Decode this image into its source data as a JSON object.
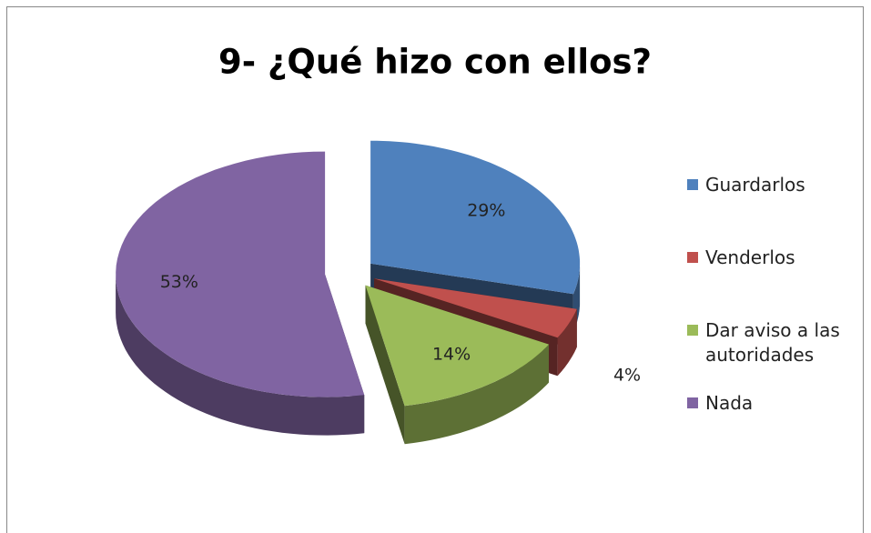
{
  "chart_data": {
    "type": "pie",
    "title": "9- ¿Qué hizo con ellos?",
    "categories": [
      "Guardarlos",
      "Venderlos",
      "Dar aviso a las autoridades",
      "Nada"
    ],
    "values": [
      29,
      4,
      14,
      53
    ],
    "value_labels": [
      "29%",
      "4%",
      "14%",
      "53%"
    ],
    "colors": [
      "#4f81bd",
      "#c0504d",
      "#9bbb59",
      "#8064a2"
    ],
    "legend": "right"
  }
}
